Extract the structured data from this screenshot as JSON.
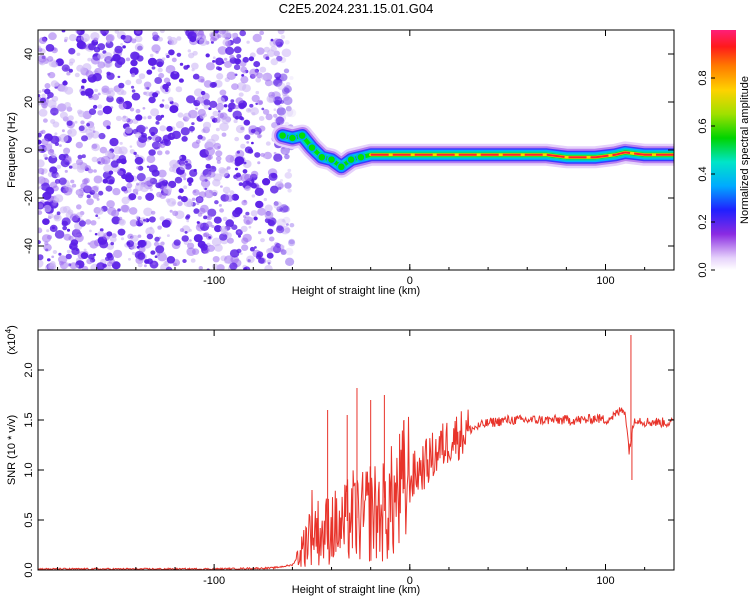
{
  "title": "C2E5.2024.231.15.01.G04",
  "chart_data": [
    {
      "type": "heatmap",
      "xlabel": "Height of straight line (km)",
      "ylabel": "Frequency (Hz)",
      "xlim": [
        -190,
        135
      ],
      "ylim": [
        -50,
        50
      ],
      "xticks": [
        -100,
        0,
        100
      ],
      "yticks": [
        -40,
        -20,
        0,
        20,
        40
      ],
      "noise_region_x": [
        -190,
        -60
      ],
      "ridge": [
        {
          "x": -65,
          "f": 6
        },
        {
          "x": -60,
          "f": 5
        },
        {
          "x": -55,
          "f": 6
        },
        {
          "x": -50,
          "f": 1
        },
        {
          "x": -45,
          "f": -3
        },
        {
          "x": -40,
          "f": -4
        },
        {
          "x": -35,
          "f": -7
        },
        {
          "x": -30,
          "f": -4
        },
        {
          "x": -25,
          "f": -3
        },
        {
          "x": -20,
          "f": -2
        },
        {
          "x": -10,
          "f": -2
        },
        {
          "x": 0,
          "f": -2
        },
        {
          "x": 20,
          "f": -2
        },
        {
          "x": 40,
          "f": -2
        },
        {
          "x": 60,
          "f": -2
        },
        {
          "x": 70,
          "f": -2
        },
        {
          "x": 80,
          "f": -3
        },
        {
          "x": 95,
          "f": -3
        },
        {
          "x": 105,
          "f": -2
        },
        {
          "x": 110,
          "f": -1
        },
        {
          "x": 120,
          "f": -2
        },
        {
          "x": 135,
          "f": -2
        }
      ],
      "colorbar": {
        "label": "Normalized spectral amplitude",
        "ticks": [
          "0.0",
          "0.2",
          "0.4",
          "0.6",
          "0.8"
        ],
        "range": [
          0,
          1
        ]
      }
    },
    {
      "type": "line",
      "xlabel": "Height of straight line (km)",
      "ylabel": "SNR (10 * v/v)",
      "multiplier": "(x10",
      "multiplier_exp": "4",
      "multiplier_close": ")",
      "xlim": [
        -190,
        135
      ],
      "ylim": [
        0,
        2.4
      ],
      "xticks": [
        -100,
        0,
        100
      ],
      "yticks": [
        0.0,
        0.5,
        1.0,
        1.5,
        2.0
      ],
      "series": [
        {
          "color": "#e8332a",
          "x": [
            -190,
            -150,
            -100,
            -70,
            -60,
            -55,
            -50,
            -45,
            -40,
            -35,
            -30,
            -25,
            -20,
            -15,
            -10,
            -5,
            0,
            5,
            10,
            15,
            20,
            25,
            30,
            40,
            50,
            60,
            70,
            80,
            90,
            95,
            100,
            105,
            108,
            110,
            112,
            115,
            120,
            125,
            135
          ],
          "y": [
            0.01,
            0.01,
            0.01,
            0.02,
            0.05,
            0.2,
            0.45,
            0.35,
            0.45,
            0.4,
            0.55,
            0.5,
            0.6,
            0.55,
            0.65,
            0.75,
            0.9,
            1.0,
            1.1,
            1.2,
            1.3,
            1.35,
            1.4,
            1.47,
            1.5,
            1.5,
            1.5,
            1.5,
            1.5,
            1.52,
            1.5,
            1.55,
            1.6,
            1.6,
            1.2,
            1.52,
            1.48,
            1.48,
            1.47
          ]
        }
      ],
      "spikes": [
        {
          "x": -42,
          "y": 1.6
        },
        {
          "x": -32,
          "y": 1.55
        },
        {
          "x": -27,
          "y": 1.82
        },
        {
          "x": -20,
          "y": 1.7
        },
        {
          "x": -13,
          "y": 1.75
        },
        {
          "x": -3,
          "y": 1.5
        },
        {
          "x": 113,
          "y": 2.35
        },
        {
          "x": 113.5,
          "y": 0.9
        }
      ]
    }
  ],
  "colors": {
    "line": "#e8332a",
    "noise": "#5a1ee6",
    "noise_light": "#cdb8f5"
  }
}
